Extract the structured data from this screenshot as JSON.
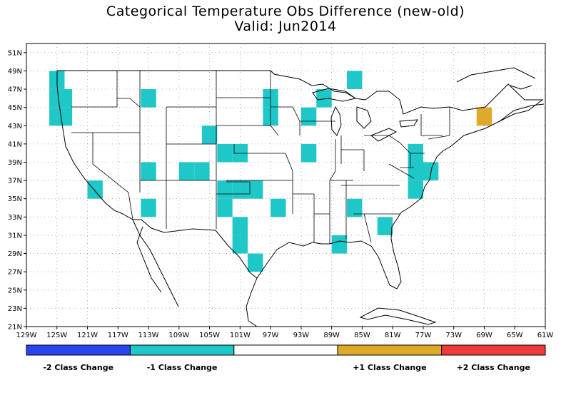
{
  "title_line1": "Categorical Temperature Obs Difference (new-old)",
  "title_line2": "Valid: Jun2014",
  "lat_ticks": [
    "51N",
    "49N",
    "47N",
    "45N",
    "43N",
    "41N",
    "39N",
    "37N",
    "35N",
    "33N",
    "31N",
    "29N",
    "27N",
    "25N",
    "23N",
    "21N"
  ],
  "lon_ticks": [
    "129W",
    "125W",
    "121W",
    "117W",
    "113W",
    "109W",
    "105W",
    "101W",
    "97W",
    "93W",
    "89W",
    "85W",
    "81W",
    "77W",
    "73W",
    "69W",
    "65W",
    "61W"
  ],
  "grid": {
    "lat_min": 21,
    "lat_max": 52,
    "lon_min": -129,
    "lon_max": -61
  },
  "colors": {
    "minus2": "#2a44f0",
    "minus1": "#1ec8c8",
    "neutral": "#ffffff",
    "plus1": "#e0a92a",
    "plus2": "#f03a3a",
    "grid": "#a0a0a0"
  },
  "legend": [
    {
      "label": "-2 Class Change",
      "color_key": "minus2"
    },
    {
      "label": "-1 Class Change",
      "color_key": "minus1"
    },
    {
      "label": "",
      "color_key": "neutral"
    },
    {
      "label": "+1 Class Change",
      "color_key": "plus1"
    },
    {
      "label": "+2 Class Change",
      "color_key": "plus2"
    }
  ],
  "cells": [
    {
      "lon": -125,
      "lat": 48,
      "class": -1
    },
    {
      "lon": -125,
      "lat": 46,
      "class": -1
    },
    {
      "lon": -125,
      "lat": 44,
      "class": -1
    },
    {
      "lon": -124,
      "lat": 46,
      "class": -1
    },
    {
      "lon": -124,
      "lat": 44,
      "class": -1
    },
    {
      "lon": -113,
      "lat": 46,
      "class": -1
    },
    {
      "lon": -113,
      "lat": 38,
      "class": -1
    },
    {
      "lon": -113,
      "lat": 34,
      "class": -1
    },
    {
      "lon": -120,
      "lat": 36,
      "class": -1
    },
    {
      "lon": -105,
      "lat": 42,
      "class": -1
    },
    {
      "lon": -108,
      "lat": 38,
      "class": -1
    },
    {
      "lon": -106,
      "lat": 38,
      "class": -1
    },
    {
      "lon": -103,
      "lat": 40,
      "class": -1
    },
    {
      "lon": -101,
      "lat": 40,
      "class": -1
    },
    {
      "lon": -103,
      "lat": 36,
      "class": -1
    },
    {
      "lon": -103,
      "lat": 34,
      "class": -1
    },
    {
      "lon": -101,
      "lat": 36,
      "class": -1
    },
    {
      "lon": -99,
      "lat": 36,
      "class": -1
    },
    {
      "lon": -101,
      "lat": 32,
      "class": -1
    },
    {
      "lon": -101,
      "lat": 30,
      "class": -1
    },
    {
      "lon": -99,
      "lat": 28,
      "class": -1
    },
    {
      "lon": -96,
      "lat": 34,
      "class": -1
    },
    {
      "lon": -97,
      "lat": 46,
      "class": -1
    },
    {
      "lon": -97,
      "lat": 44,
      "class": -1
    },
    {
      "lon": -92,
      "lat": 44,
      "class": -1
    },
    {
      "lon": -92,
      "lat": 40,
      "class": -1
    },
    {
      "lon": -90,
      "lat": 46,
      "class": -1
    },
    {
      "lon": -88,
      "lat": 30,
      "class": -1
    },
    {
      "lon": -86,
      "lat": 48,
      "class": -1
    },
    {
      "lon": -86,
      "lat": 34,
      "class": -1
    },
    {
      "lon": -82,
      "lat": 32,
      "class": -1
    },
    {
      "lon": -78,
      "lat": 40,
      "class": -1
    },
    {
      "lon": -78,
      "lat": 38,
      "class": -1
    },
    {
      "lon": -78,
      "lat": 36,
      "class": -1
    },
    {
      "lon": -77,
      "lat": 38,
      "class": -1
    },
    {
      "lon": -76,
      "lat": 38,
      "class": -1
    },
    {
      "lon": -69,
      "lat": 44,
      "class": 1
    }
  ]
}
